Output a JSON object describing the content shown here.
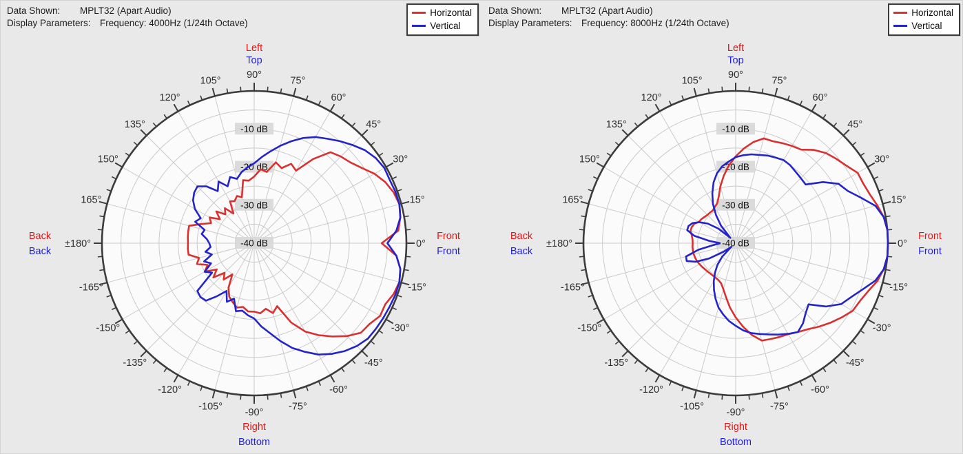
{
  "colors": {
    "horizontal": "#d93030",
    "vertical": "#2424c8",
    "red_label": "#e21414",
    "blue_label": "#2020dd",
    "angle_label": "#2e2e2e",
    "grid": "#cacaca",
    "rim": "#3c3c3c",
    "plot_fill": "#fbfbfb",
    "chip_bg": "#d8d8d8",
    "page_bg": "#e9e9e9"
  },
  "panels": [
    {
      "header": {
        "data_shown_label": "Data Shown:",
        "data_shown_value": "MPLT32 (Apart Audio)",
        "display_parameters_label": "Display Parameters:",
        "display_parameters_value": "Frequency: 4000Hz (1/24th Octave)"
      },
      "legend": [
        {
          "label": "Horizontal",
          "color": "#d93030"
        },
        {
          "label": "Vertical",
          "color": "#2424c8"
        }
      ]
    },
    {
      "header": {
        "data_shown_label": "Data Shown:",
        "data_shown_value": "MPLT32 (Apart Audio)",
        "display_parameters_label": "Display Parameters:",
        "display_parameters_value": "Frequency: 8000Hz (1/24th Octave)"
      },
      "legend": [
        {
          "label": "Horizontal",
          "color": "#d93030"
        },
        {
          "label": "Vertical",
          "color": "#2424c8"
        }
      ]
    }
  ],
  "chart_data": [
    {
      "type": "line",
      "subtype": "polar",
      "title": "MPLT32 (Apart Audio)",
      "frequency": "4000Hz (1/24th Octave)",
      "radial_axis": {
        "unit": "dB",
        "rim_db": 0,
        "center_db": -40,
        "ring_step_db": 5,
        "labels": [
          "-10 dB",
          "-20 dB",
          "-30 dB",
          "-40 dB"
        ]
      },
      "angle_axis": {
        "label_step_deg": 15,
        "tick_step_deg": 5,
        "back_label": "±180°",
        "direction_labels": {
          "top": [
            {
              "text": "Left",
              "color": "#e21414"
            },
            {
              "text": "Top",
              "color": "#2020dd"
            }
          ],
          "right": [
            {
              "text": "Front",
              "color": "#e21414"
            },
            {
              "text": "Front",
              "color": "#2020dd"
            }
          ],
          "left": [
            {
              "text": "Back",
              "color": "#e21414"
            },
            {
              "text": "Back",
              "color": "#2020dd"
            }
          ],
          "bottom": [
            {
              "text": "Right",
              "color": "#e21414"
            },
            {
              "text": "Bottom",
              "color": "#2020dd"
            }
          ]
        }
      },
      "angles_deg": [
        -180,
        -175,
        -170,
        -165,
        -160,
        -155,
        -150,
        -145,
        -140,
        -135,
        -130,
        -125,
        -120,
        -115,
        -110,
        -105,
        -100,
        -95,
        -90,
        -85,
        -80,
        -75,
        -70,
        -65,
        -60,
        -55,
        -50,
        -45,
        -40,
        -35,
        -30,
        -25,
        -20,
        -15,
        -10,
        -5,
        0,
        5,
        10,
        15,
        20,
        25,
        30,
        35,
        40,
        45,
        50,
        55,
        60,
        65,
        70,
        75,
        80,
        85,
        90,
        95,
        100,
        105,
        110,
        115,
        120,
        125,
        130,
        135,
        140,
        145,
        150,
        155,
        160,
        165,
        170,
        175,
        180
      ],
      "series": [
        {
          "name": "Horizontal",
          "color_key": "horizontal",
          "values_db": [
            -22.6,
            -22.5,
            -22.5,
            -25,
            -24,
            -26.5,
            -25,
            -28,
            -26,
            -29,
            -27.5,
            -30,
            -26.5,
            -24.5,
            -23.5,
            -22.5,
            -23,
            -22,
            -22,
            -21.5,
            -22.5,
            -21,
            -22.4,
            -17,
            -13.2,
            -10.5,
            -8,
            -5.5,
            -3.4,
            -3,
            -1.8,
            -2,
            -1,
            -0.5,
            -1,
            -2.5,
            -6.5,
            -2,
            -1,
            -0.5,
            -1,
            -2,
            -3.5,
            -5.5,
            -7,
            -7.8,
            -8.8,
            -13,
            -18,
            -17,
            -19,
            -18,
            -21,
            -20.5,
            -22.5,
            -23.5,
            -23.2,
            -27.5,
            -26.8,
            -27.8,
            -27.3,
            -30.5,
            -28,
            -29.3,
            -27,
            -29,
            -26.5,
            -27.5,
            -25.3,
            -22.3,
            -22.4,
            -22.5,
            -22.6
          ]
        },
        {
          "name": "Vertical",
          "color_key": "vertical",
          "values_db": [
            -28.2,
            -28.5,
            -27,
            -28.5,
            -26,
            -27.5,
            -25,
            -26.5,
            -20.5,
            -20,
            -20.3,
            -23,
            -25.5,
            -23,
            -24.5,
            -21.5,
            -22,
            -21,
            -20.2,
            -18,
            -16,
            -13.4,
            -10.7,
            -8.5,
            -6.2,
            -4.5,
            -3,
            -1.8,
            -1,
            -0.9,
            -0.8,
            -0.7,
            -0.5,
            -0.5,
            -1,
            -2.5,
            -5,
            -2.5,
            -1,
            -0.5,
            -0.5,
            -0.7,
            -0.5,
            -1,
            -2,
            -3.5,
            -5,
            -6.5,
            -7.8,
            -9.5,
            -11.5,
            -13.5,
            -15.5,
            -17.3,
            -19,
            -20,
            -21,
            -22.5,
            -21.5,
            -23.5,
            -21.3,
            -23.3,
            -20.5,
            -18.9,
            -19.4,
            -20.4,
            -22,
            -24.5,
            -23.5,
            -26.5,
            -26,
            -27.5,
            -28.2
          ]
        }
      ]
    },
    {
      "type": "line",
      "subtype": "polar",
      "title": "MPLT32 (Apart Audio)",
      "frequency": "8000Hz (1/24th Octave)",
      "radial_axis": {
        "unit": "dB",
        "rim_db": 0,
        "center_db": -40,
        "ring_step_db": 5,
        "labels": [
          "-10 dB",
          "-20 dB",
          "-30 dB",
          "-40 dB"
        ]
      },
      "angle_axis": {
        "label_step_deg": 15,
        "tick_step_deg": 5,
        "back_label": "±180°",
        "direction_labels": {
          "top": [
            {
              "text": "Left",
              "color": "#e21414"
            },
            {
              "text": "Top",
              "color": "#2020dd"
            }
          ],
          "right": [
            {
              "text": "Front",
              "color": "#e21414"
            },
            {
              "text": "Front",
              "color": "#2020dd"
            }
          ],
          "left": [
            {
              "text": "Back",
              "color": "#e21414"
            },
            {
              "text": "Back",
              "color": "#2020dd"
            }
          ],
          "bottom": [
            {
              "text": "Right",
              "color": "#e21414"
            },
            {
              "text": "Bottom",
              "color": "#2020dd"
            }
          ]
        }
      },
      "angles_deg": [
        -180,
        -175,
        -170,
        -165,
        -160,
        -155,
        -150,
        -145,
        -140,
        -135,
        -130,
        -125,
        -120,
        -115,
        -110,
        -105,
        -100,
        -95,
        -90,
        -85,
        -80,
        -75,
        -70,
        -65,
        -60,
        -55,
        -50,
        -45,
        -40,
        -35,
        -30,
        -25,
        -20,
        -15,
        -10,
        -5,
        0,
        5,
        10,
        15,
        20,
        25,
        30,
        35,
        40,
        45,
        50,
        55,
        60,
        65,
        70,
        75,
        80,
        85,
        90,
        95,
        100,
        105,
        110,
        115,
        120,
        125,
        130,
        135,
        140,
        145,
        150,
        155,
        160,
        165,
        170,
        175,
        180
      ],
      "series": [
        {
          "name": "Horizontal",
          "color_key": "horizontal",
          "values_db": [
            -28.7,
            -28.6,
            -28.6,
            -28.6,
            -28.7,
            -28.8,
            -29,
            -29.2,
            -29.4,
            -29.5,
            -29.6,
            -29.6,
            -29.5,
            -29.3,
            -28.8,
            -27.5,
            -25.5,
            -23,
            -20.5,
            -18,
            -15.5,
            -13.5,
            -13.2,
            -12.8,
            -12.4,
            -11.5,
            -10.5,
            -9,
            -7.5,
            -6,
            -4.5,
            -4,
            -3,
            -1.5,
            -0.5,
            0,
            0,
            0,
            -0.5,
            -1.5,
            -2.5,
            -3,
            -3,
            -4.5,
            -5.5,
            -6.5,
            -8,
            -10,
            -10.5,
            -11,
            -11.5,
            -11.5,
            -13,
            -15,
            -17.2,
            -19.5,
            -22,
            -24.5,
            -27,
            -28.5,
            -29,
            -29.5,
            -29.5,
            -29.5,
            -29.3,
            -29,
            -28.8,
            -28,
            -27.7,
            -27.7,
            -28.3,
            -28.6,
            -28.7
          ]
        },
        {
          "name": "Vertical",
          "color_key": "vertical",
          "values_db": [
            -36,
            -34,
            -30,
            -26.5,
            -26.3,
            -28.5,
            -32,
            -36,
            -38.5,
            -35,
            -32.5,
            -30.5,
            -28.5,
            -26.5,
            -24.5,
            -22.5,
            -21,
            -19.5,
            -18.3,
            -17,
            -16,
            -15.3,
            -14.5,
            -13.5,
            -12.5,
            -11.5,
            -12.5,
            -14,
            -15,
            -11,
            -8,
            -6.5,
            -4.5,
            -2,
            -0.5,
            0,
            0,
            0,
            -0.5,
            -2,
            -5,
            -7.5,
            -8.8,
            -12,
            -16,
            -15.8,
            -15.5,
            -15,
            -14.8,
            -15.2,
            -15.5,
            -16,
            -16.3,
            -16.8,
            -17.4,
            -18.5,
            -19.5,
            -21,
            -23,
            -25.5,
            -28,
            -31,
            -34,
            -38,
            -34,
            -31,
            -29,
            -27.5,
            -26.8,
            -26.8,
            -29,
            -33,
            -36
          ]
        }
      ]
    }
  ]
}
